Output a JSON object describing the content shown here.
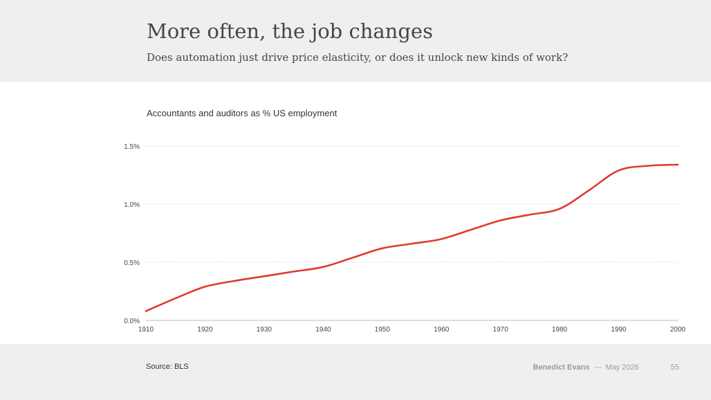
{
  "header": {
    "title": "More often, the job changes",
    "subtitle": "Does automation just drive price elasticity, or does it unlock new kinds of work?"
  },
  "footer": {
    "source": "Source: BLS",
    "author": "Benedict Evans",
    "separator": "—",
    "date": "May 2026",
    "page": "55"
  },
  "chart_data": {
    "type": "line",
    "title": "Accountants and auditors as % US employment",
    "xlabel": "",
    "ylabel": "",
    "xlim": [
      1910,
      2000
    ],
    "ylim": [
      0,
      1.5
    ],
    "x_ticks": [
      "1910",
      "1920",
      "1930",
      "1940",
      "1950",
      "1960",
      "1970",
      "1980",
      "1990",
      "2000"
    ],
    "y_ticks": [
      "0.0%",
      "0.5%",
      "1.0%",
      "1.5%"
    ],
    "grid": "horizontal dotted",
    "series": [
      {
        "color": "#e03a2f",
        "x": [
          1910,
          1915,
          1920,
          1925,
          1930,
          1935,
          1940,
          1945,
          1950,
          1955,
          1960,
          1965,
          1970,
          1975,
          1980,
          1985,
          1990,
          1995,
          2000
        ],
        "values": [
          0.08,
          0.19,
          0.29,
          0.34,
          0.38,
          0.42,
          0.46,
          0.54,
          0.62,
          0.66,
          0.7,
          0.78,
          0.86,
          0.91,
          0.96,
          1.12,
          1.29,
          1.33,
          1.34
        ]
      }
    ]
  }
}
